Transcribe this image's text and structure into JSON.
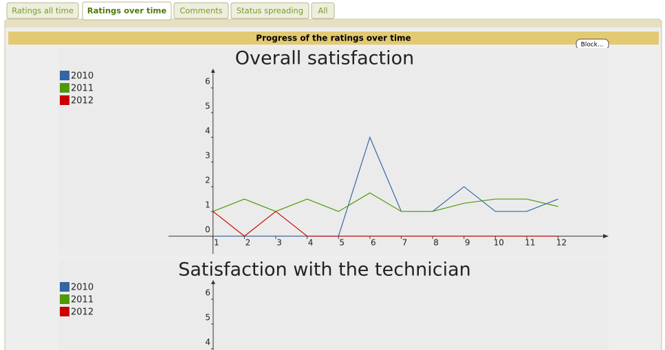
{
  "tabs": [
    "Ratings all time",
    "Ratings over time",
    "Comments",
    "Status spreading",
    "All"
  ],
  "active_tab": 1,
  "panel_title": "Progress of the ratings over time",
  "button": "Block...",
  "chart_data": [
    {
      "type": "line",
      "title": "Overall satisfaction",
      "x": [
        1,
        2,
        3,
        4,
        5,
        6,
        7,
        8,
        9,
        10,
        11,
        12
      ],
      "xlim": [
        -0.42,
        13.61
      ],
      "xticks": [
        1,
        2,
        3,
        4,
        5,
        6,
        7,
        8,
        9,
        10,
        11,
        12
      ],
      "ylim": [
        -0.72,
        6.78
      ],
      "yticks": [
        0,
        1,
        2,
        3,
        4,
        5,
        6
      ],
      "legend": "top-left",
      "series": [
        {
          "name": "2010",
          "color": "#3465a4",
          "values": [
            0,
            0,
            0,
            0,
            0,
            4,
            1,
            1,
            2,
            1,
            1,
            1.5
          ]
        },
        {
          "name": "2011",
          "color": "#4e9a06",
          "values": [
            1,
            1.5,
            1,
            1.5,
            1,
            1.75,
            1,
            1,
            1.33,
            1.5,
            1.5,
            1.2
          ]
        },
        {
          "name": "2012",
          "color": "#cc0000",
          "values": [
            1,
            0,
            1,
            0,
            0,
            0,
            0,
            0,
            0,
            0,
            0,
            0
          ]
        }
      ]
    },
    {
      "type": "line",
      "title": "Satisfaction with the technician",
      "ylim": [
        -0.72,
        6.78
      ],
      "yticks": [
        4,
        5,
        6
      ],
      "legend": "top-left",
      "series": [
        {
          "name": "2010",
          "color": "#3465a4"
        },
        {
          "name": "2011",
          "color": "#4e9a06"
        },
        {
          "name": "2012",
          "color": "#cc0000"
        }
      ]
    }
  ]
}
